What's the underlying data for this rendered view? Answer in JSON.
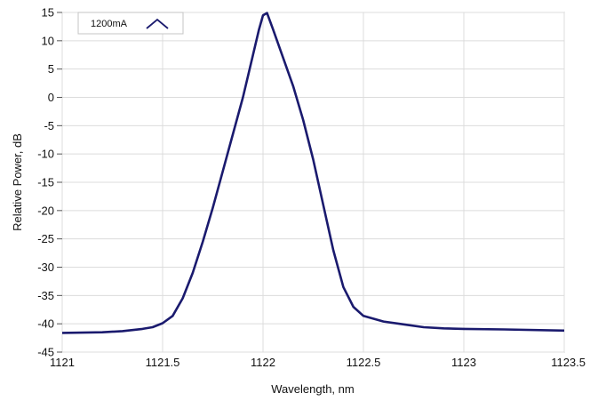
{
  "chart_data": {
    "type": "line",
    "xlabel": "Wavelength, nm",
    "ylabel": "Relative Power, dB",
    "xlim": [
      1121,
      1123.5
    ],
    "ylim": [
      -45,
      15
    ],
    "x_ticks": [
      "1121",
      "1121.5",
      "1122",
      "1122.5",
      "1123",
      "1123.5"
    ],
    "y_ticks": [
      "15",
      "10",
      "5",
      "0",
      "-5",
      "-10",
      "-15",
      "-20",
      "-25",
      "-30",
      "-35",
      "-40",
      "-45"
    ],
    "grid": true,
    "legend_position": "top-left",
    "series": [
      {
        "name": "1200mA",
        "color": "#1a1a6e",
        "points": [
          [
            1121.0,
            -41.6
          ],
          [
            1121.2,
            -41.5
          ],
          [
            1121.3,
            -41.3
          ],
          [
            1121.4,
            -40.9
          ],
          [
            1121.45,
            -40.6
          ],
          [
            1121.5,
            -39.9
          ],
          [
            1121.55,
            -38.6
          ],
          [
            1121.6,
            -35.5
          ],
          [
            1121.65,
            -31.0
          ],
          [
            1121.7,
            -25.5
          ],
          [
            1121.75,
            -19.5
          ],
          [
            1121.8,
            -13.0
          ],
          [
            1121.85,
            -6.5
          ],
          [
            1121.9,
            0.0
          ],
          [
            1121.95,
            7.5
          ],
          [
            1121.98,
            12.0
          ],
          [
            1122.0,
            14.5
          ],
          [
            1122.02,
            14.9
          ],
          [
            1122.05,
            12.0
          ],
          [
            1122.1,
            7.0
          ],
          [
            1122.15,
            2.0
          ],
          [
            1122.2,
            -4.0
          ],
          [
            1122.25,
            -11.0
          ],
          [
            1122.3,
            -19.0
          ],
          [
            1122.35,
            -27.0
          ],
          [
            1122.4,
            -33.5
          ],
          [
            1122.45,
            -37.0
          ],
          [
            1122.5,
            -38.6
          ],
          [
            1122.6,
            -39.6
          ],
          [
            1122.7,
            -40.1
          ],
          [
            1122.8,
            -40.6
          ],
          [
            1122.9,
            -40.8
          ],
          [
            1123.0,
            -40.9
          ],
          [
            1123.2,
            -41.0
          ],
          [
            1123.5,
            -41.2
          ]
        ]
      }
    ]
  }
}
